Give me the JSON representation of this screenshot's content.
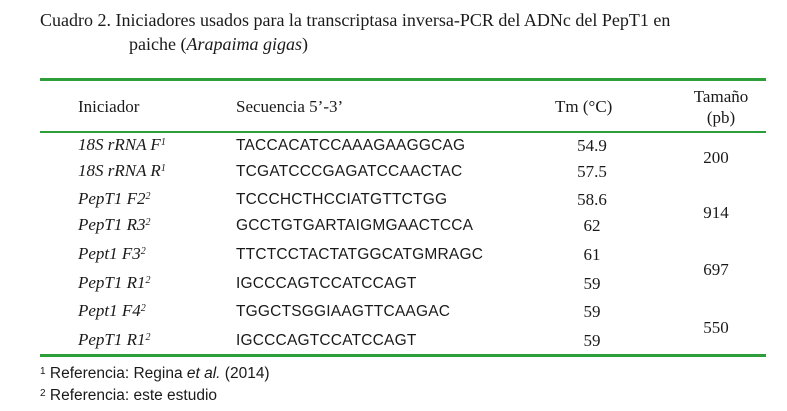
{
  "caption": {
    "label": "Cuadro 2.",
    "text_main": "Iniciadores usados para la transcriptasa inversa-PCR del ADNc del PepT1 en",
    "text_line2_prefix": "paiche (",
    "text_line2_italic": "Arapaima gigas",
    "text_line2_suffix": ")"
  },
  "table": {
    "headers": {
      "primer": "Iniciador",
      "sequence": "Secuencia 5’-3’",
      "tm": "Tm (°C)",
      "size_line1": "Tamaño",
      "size_line2": "(pb)"
    },
    "rows": [
      {
        "name": "18S rRNA F",
        "ref": "1",
        "sequence": "TACCACATCCAAAGAAGGCAG",
        "tm": "54.9"
      },
      {
        "name": "18S rRNA R",
        "ref": "1",
        "sequence": "TCGATCCCGAGATCCAACTAC",
        "tm": "57.5"
      },
      {
        "name": "PepT1 F2",
        "ref": "2",
        "sequence": "TCCCHCTHCCIATGTTCTGG",
        "tm": "58.6"
      },
      {
        "name": "PepT1 R3",
        "ref": "2",
        "sequence": "GCCTGTGARTAIGMGAACTCCA",
        "tm": "62"
      },
      {
        "name": "Pept1 F3",
        "ref": "2",
        "sequence": "TTCTCCTACTATGGCATGMRAGC",
        "tm": "61"
      },
      {
        "name": "PepT1 R1",
        "ref": "2",
        "sequence": "IGCCCAGTCCATCCAGT",
        "tm": "59"
      },
      {
        "name": "Pept1 F4",
        "ref": "2",
        "sequence": "TGGCTSGGIAAGTTCAAGAC",
        "tm": "59"
      },
      {
        "name": "PepT1 R1",
        "ref": "2",
        "sequence": "IGCCCAGTCCATCCAGT",
        "tm": "59"
      }
    ],
    "sizes": [
      "200",
      "914",
      "697",
      "550"
    ]
  },
  "notes": {
    "note1_mark": "1",
    "note1_prefix": "Referencia: Regina ",
    "note1_italic": "et al.",
    "note1_suffix": " (2014)",
    "note2_mark": "2",
    "note2_text": "Referencia: este estudio"
  },
  "colors": {
    "rule": "#2e9e3a"
  }
}
